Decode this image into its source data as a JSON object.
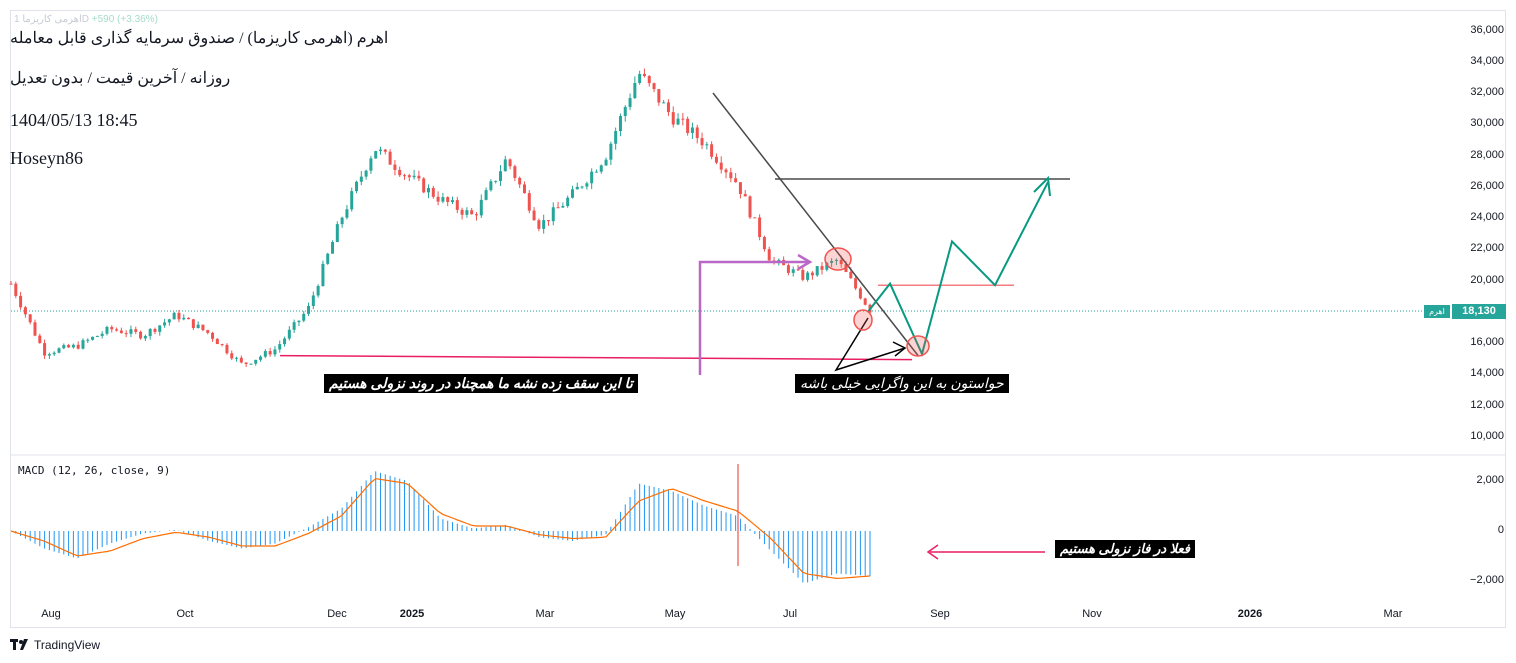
{
  "header": {
    "ticker_faded": "اهرمی کاریزما 1D",
    "change_faded": "+590 (+3.36%)",
    "title": "اهرم (اهرمی کاریزما) / صندوق سرمایه گذاری قابل معامله",
    "subtitle": "روزانه / آخرین قیمت / بدون تعدیل",
    "datetime": "1404/05/13 18:45",
    "author": "Hoseyn86"
  },
  "price_axis": {
    "ticks": [
      "36,000",
      "34,000",
      "32,000",
      "30,000",
      "28,000",
      "26,000",
      "24,000",
      "22,000",
      "20,000",
      "18,000",
      "16,000",
      "14,000",
      "12,000",
      "10,000"
    ],
    "last_price": "18,130",
    "symbol_tag": "اهرم"
  },
  "macd_axis": {
    "ticks": [
      "2,000",
      "0",
      "−2,000"
    ]
  },
  "time_axis": {
    "labels": [
      {
        "text": "Aug",
        "bold": false
      },
      {
        "text": "Oct",
        "bold": false
      },
      {
        "text": "Dec",
        "bold": false
      },
      {
        "text": "2025",
        "bold": true
      },
      {
        "text": "Mar",
        "bold": false
      },
      {
        "text": "May",
        "bold": false
      },
      {
        "text": "Jul",
        "bold": false
      },
      {
        "text": "Sep",
        "bold": false
      },
      {
        "text": "Nov",
        "bold": false
      },
      {
        "text": "2026",
        "bold": true
      },
      {
        "text": "Mar",
        "bold": false
      }
    ]
  },
  "annotations": {
    "resistance_note": "تا این سقف زده نشه ما همچناد در روند نزولی هستیم",
    "divergence_note": "حواستون به این واگرایی خیلی باشه",
    "macd_note": "فعلا در فاز نزولی هستیم"
  },
  "macd_label": "MACD (12, 26, close, 9)",
  "brand": "TradingView",
  "colors": {
    "up": "#26a69a",
    "down": "#ef5350",
    "macd_hist": "#2196f3",
    "signal": "#ff6d00",
    "trendline": "#4a4a4a",
    "magenta": "#e91e63",
    "purple": "#ba68c8",
    "projection": "#089981",
    "pink_line": "#f77c80"
  },
  "chart_data": [
    {
      "type": "candlestick",
      "title": "اهرم (اهرمی کاریزما) / صندوق سرمایه گذاری قابل معامله",
      "timeframe": "روزانه",
      "x_labels": [
        "Aug",
        "Oct",
        "Dec",
        "2025",
        "Mar",
        "May",
        "Jul",
        "Sep",
        "Nov",
        "2026",
        "Mar"
      ],
      "ylim": [
        9500,
        36500
      ],
      "price_path": {
        "x": [
          "Aug start",
          "Aug",
          "Aug mid",
          "Sep",
          "Sep mid",
          "Oct",
          "Oct mid",
          "Nov",
          "Nov mid",
          "Dec",
          "Dec mid",
          "2025",
          "Jan mid",
          "Feb",
          "Feb mid",
          "Mar",
          "Mar mid",
          "Apr",
          "Apr mid",
          "May start",
          "May",
          "May mid",
          "Jun",
          "Jun mid",
          "Jul",
          "Jul mid",
          "Aug"
        ],
        "close": [
          19800,
          15400,
          15800,
          16900,
          16500,
          17800,
          16600,
          14600,
          15600,
          18200,
          24000,
          28500,
          26700,
          25200,
          24100,
          27800,
          23500,
          25500,
          28000,
          33300,
          30500,
          28800,
          26200,
          21300,
          20200,
          21300,
          18130
        ]
      },
      "last_price": 18130,
      "drawings": {
        "descending_trendline": {
          "from": [
            "May",
            32000
          ],
          "to": [
            "Sep",
            15200
          ]
        },
        "resistance_horizontal": {
          "y": 26500,
          "from": "Jul",
          "to": "Nov"
        },
        "support_horizontal": {
          "y": 15000,
          "from": "Nov",
          "to": "Sep"
        },
        "pink_level": {
          "y": 19700,
          "from": "Aug",
          "to": "Oct"
        },
        "projection_path_y": [
          18000,
          19800,
          15300,
          22500,
          19700,
          26300
        ]
      }
    },
    {
      "type": "bar",
      "title": "MACD (12, 26, close, 9)",
      "ylim": [
        -2500,
        2500
      ],
      "x": [
        "Aug start",
        "Aug",
        "Aug mid",
        "Sep",
        "Sep mid",
        "Oct",
        "Oct mid",
        "Nov",
        "Nov mid",
        "Dec",
        "Dec mid",
        "2025",
        "Jan mid",
        "Feb",
        "Feb mid",
        "Mar",
        "Mar mid",
        "Apr",
        "Apr mid",
        "May start",
        "May",
        "May mid",
        "Jun",
        "Jun mid",
        "Jul",
        "Jul mid",
        "Aug"
      ],
      "series": [
        {
          "name": "MACD",
          "values": [
            0,
            -700,
            -1100,
            -500,
            -100,
            50,
            -400,
            -700,
            -500,
            150,
            900,
            2400,
            2000,
            500,
            100,
            250,
            -250,
            -400,
            -150,
            1900,
            1600,
            1000,
            600,
            -800,
            -2100,
            -1700,
            -1800
          ]
        },
        {
          "name": "Signal",
          "values": [
            0,
            -400,
            -1000,
            -800,
            -300,
            -50,
            -250,
            -600,
            -600,
            -100,
            600,
            2100,
            1900,
            700,
            200,
            200,
            -150,
            -300,
            -250,
            1200,
            1700,
            1200,
            800,
            -300,
            -1700,
            -1900,
            -1800
          ]
        }
      ]
    }
  ]
}
